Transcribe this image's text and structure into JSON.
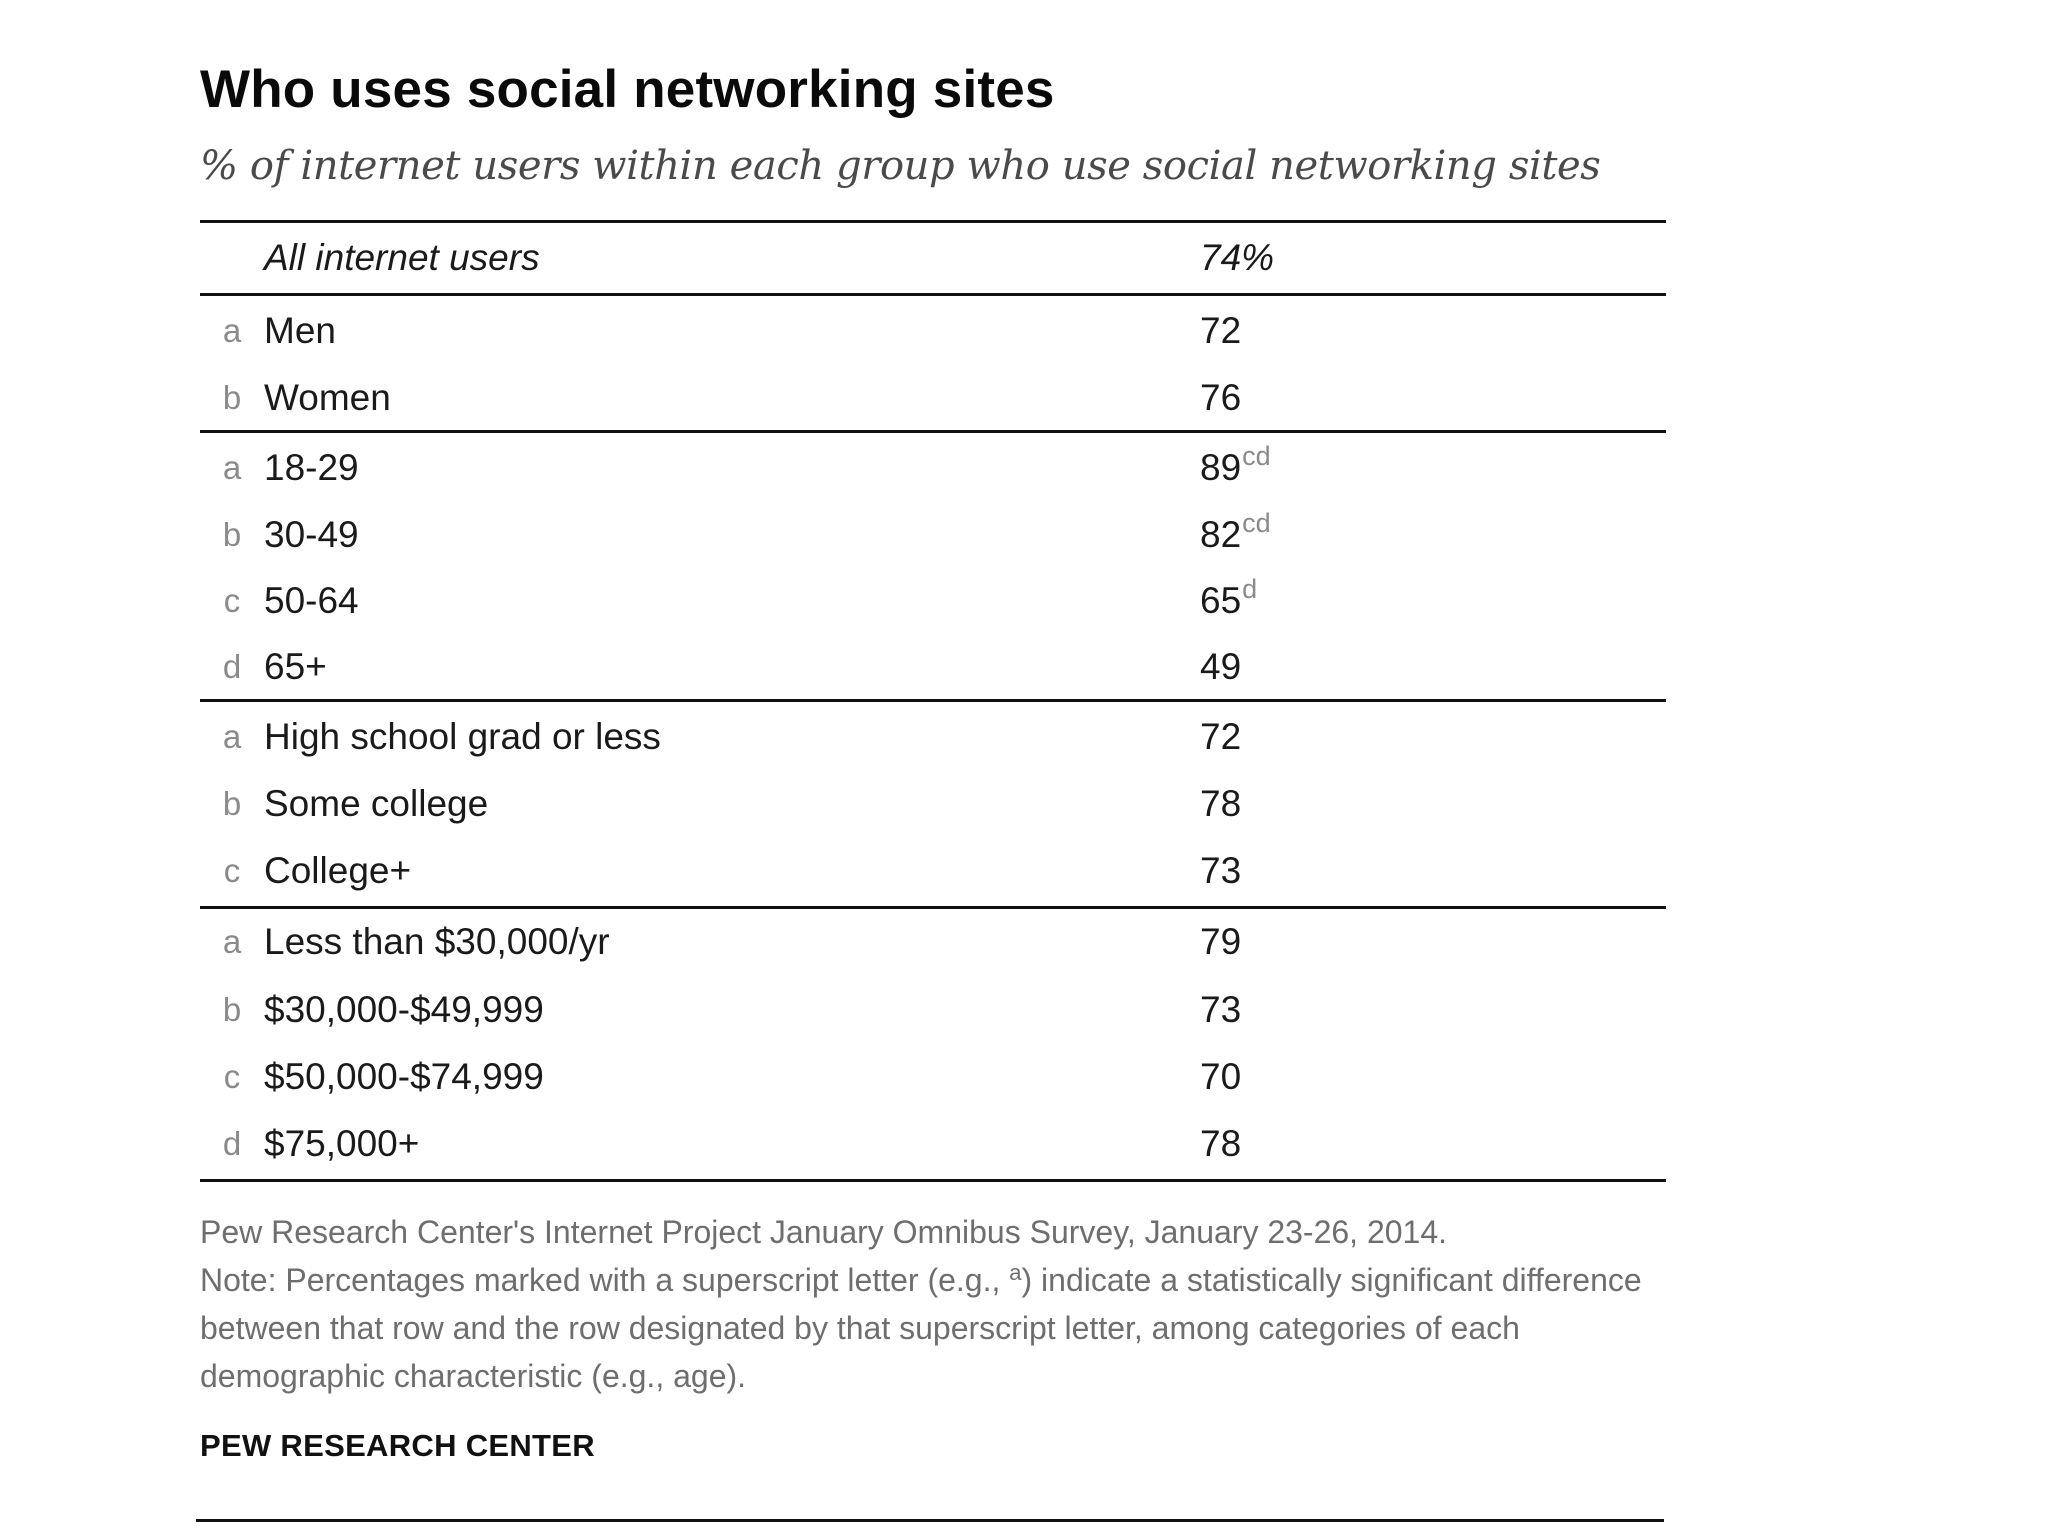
{
  "chart_data": {
    "type": "table",
    "title": "Who uses social networking sites",
    "subtitle": "% of internet users within each group who use social networking sites",
    "all_row": {
      "label": "All internet users",
      "value": "74%"
    },
    "groups": [
      {
        "rows": [
          {
            "letter": "a",
            "label": "Men",
            "value": 72,
            "sig": ""
          },
          {
            "letter": "b",
            "label": "Women",
            "value": 76,
            "sig": ""
          }
        ]
      },
      {
        "rows": [
          {
            "letter": "a",
            "label": "18-29",
            "value": 89,
            "sig": "cd"
          },
          {
            "letter": "b",
            "label": "30-49",
            "value": 82,
            "sig": "cd"
          },
          {
            "letter": "c",
            "label": "50-64",
            "value": 65,
            "sig": "d"
          },
          {
            "letter": "d",
            "label": "65+",
            "value": 49,
            "sig": ""
          }
        ]
      },
      {
        "rows": [
          {
            "letter": "a",
            "label": "High school grad or less",
            "value": 72,
            "sig": ""
          },
          {
            "letter": "b",
            "label": "Some college",
            "value": 78,
            "sig": ""
          },
          {
            "letter": "c",
            "label": "College+",
            "value": 73,
            "sig": ""
          }
        ]
      },
      {
        "rows": [
          {
            "letter": "a",
            "label": "Less than $30,000/yr",
            "value": 79,
            "sig": ""
          },
          {
            "letter": "b",
            "label": "$30,000-$49,999",
            "value": 73,
            "sig": ""
          },
          {
            "letter": "c",
            "label": "$50,000-$74,999",
            "value": 70,
            "sig": ""
          },
          {
            "letter": "d",
            "label": "$75,000+",
            "value": 78,
            "sig": ""
          }
        ]
      }
    ]
  },
  "footnote": {
    "source": "Pew Research Center's Internet Project January Omnibus Survey, January 23-26, 2014.",
    "note_before": "Note: Percentages marked with a superscript letter (e.g., ",
    "note_sup": "a",
    "note_after": ") indicate a statistically significant difference between that row and the row designated by that superscript letter, among categories of each demographic characteristic (e.g., age)."
  },
  "brand": "PEW RESEARCH CENTER"
}
